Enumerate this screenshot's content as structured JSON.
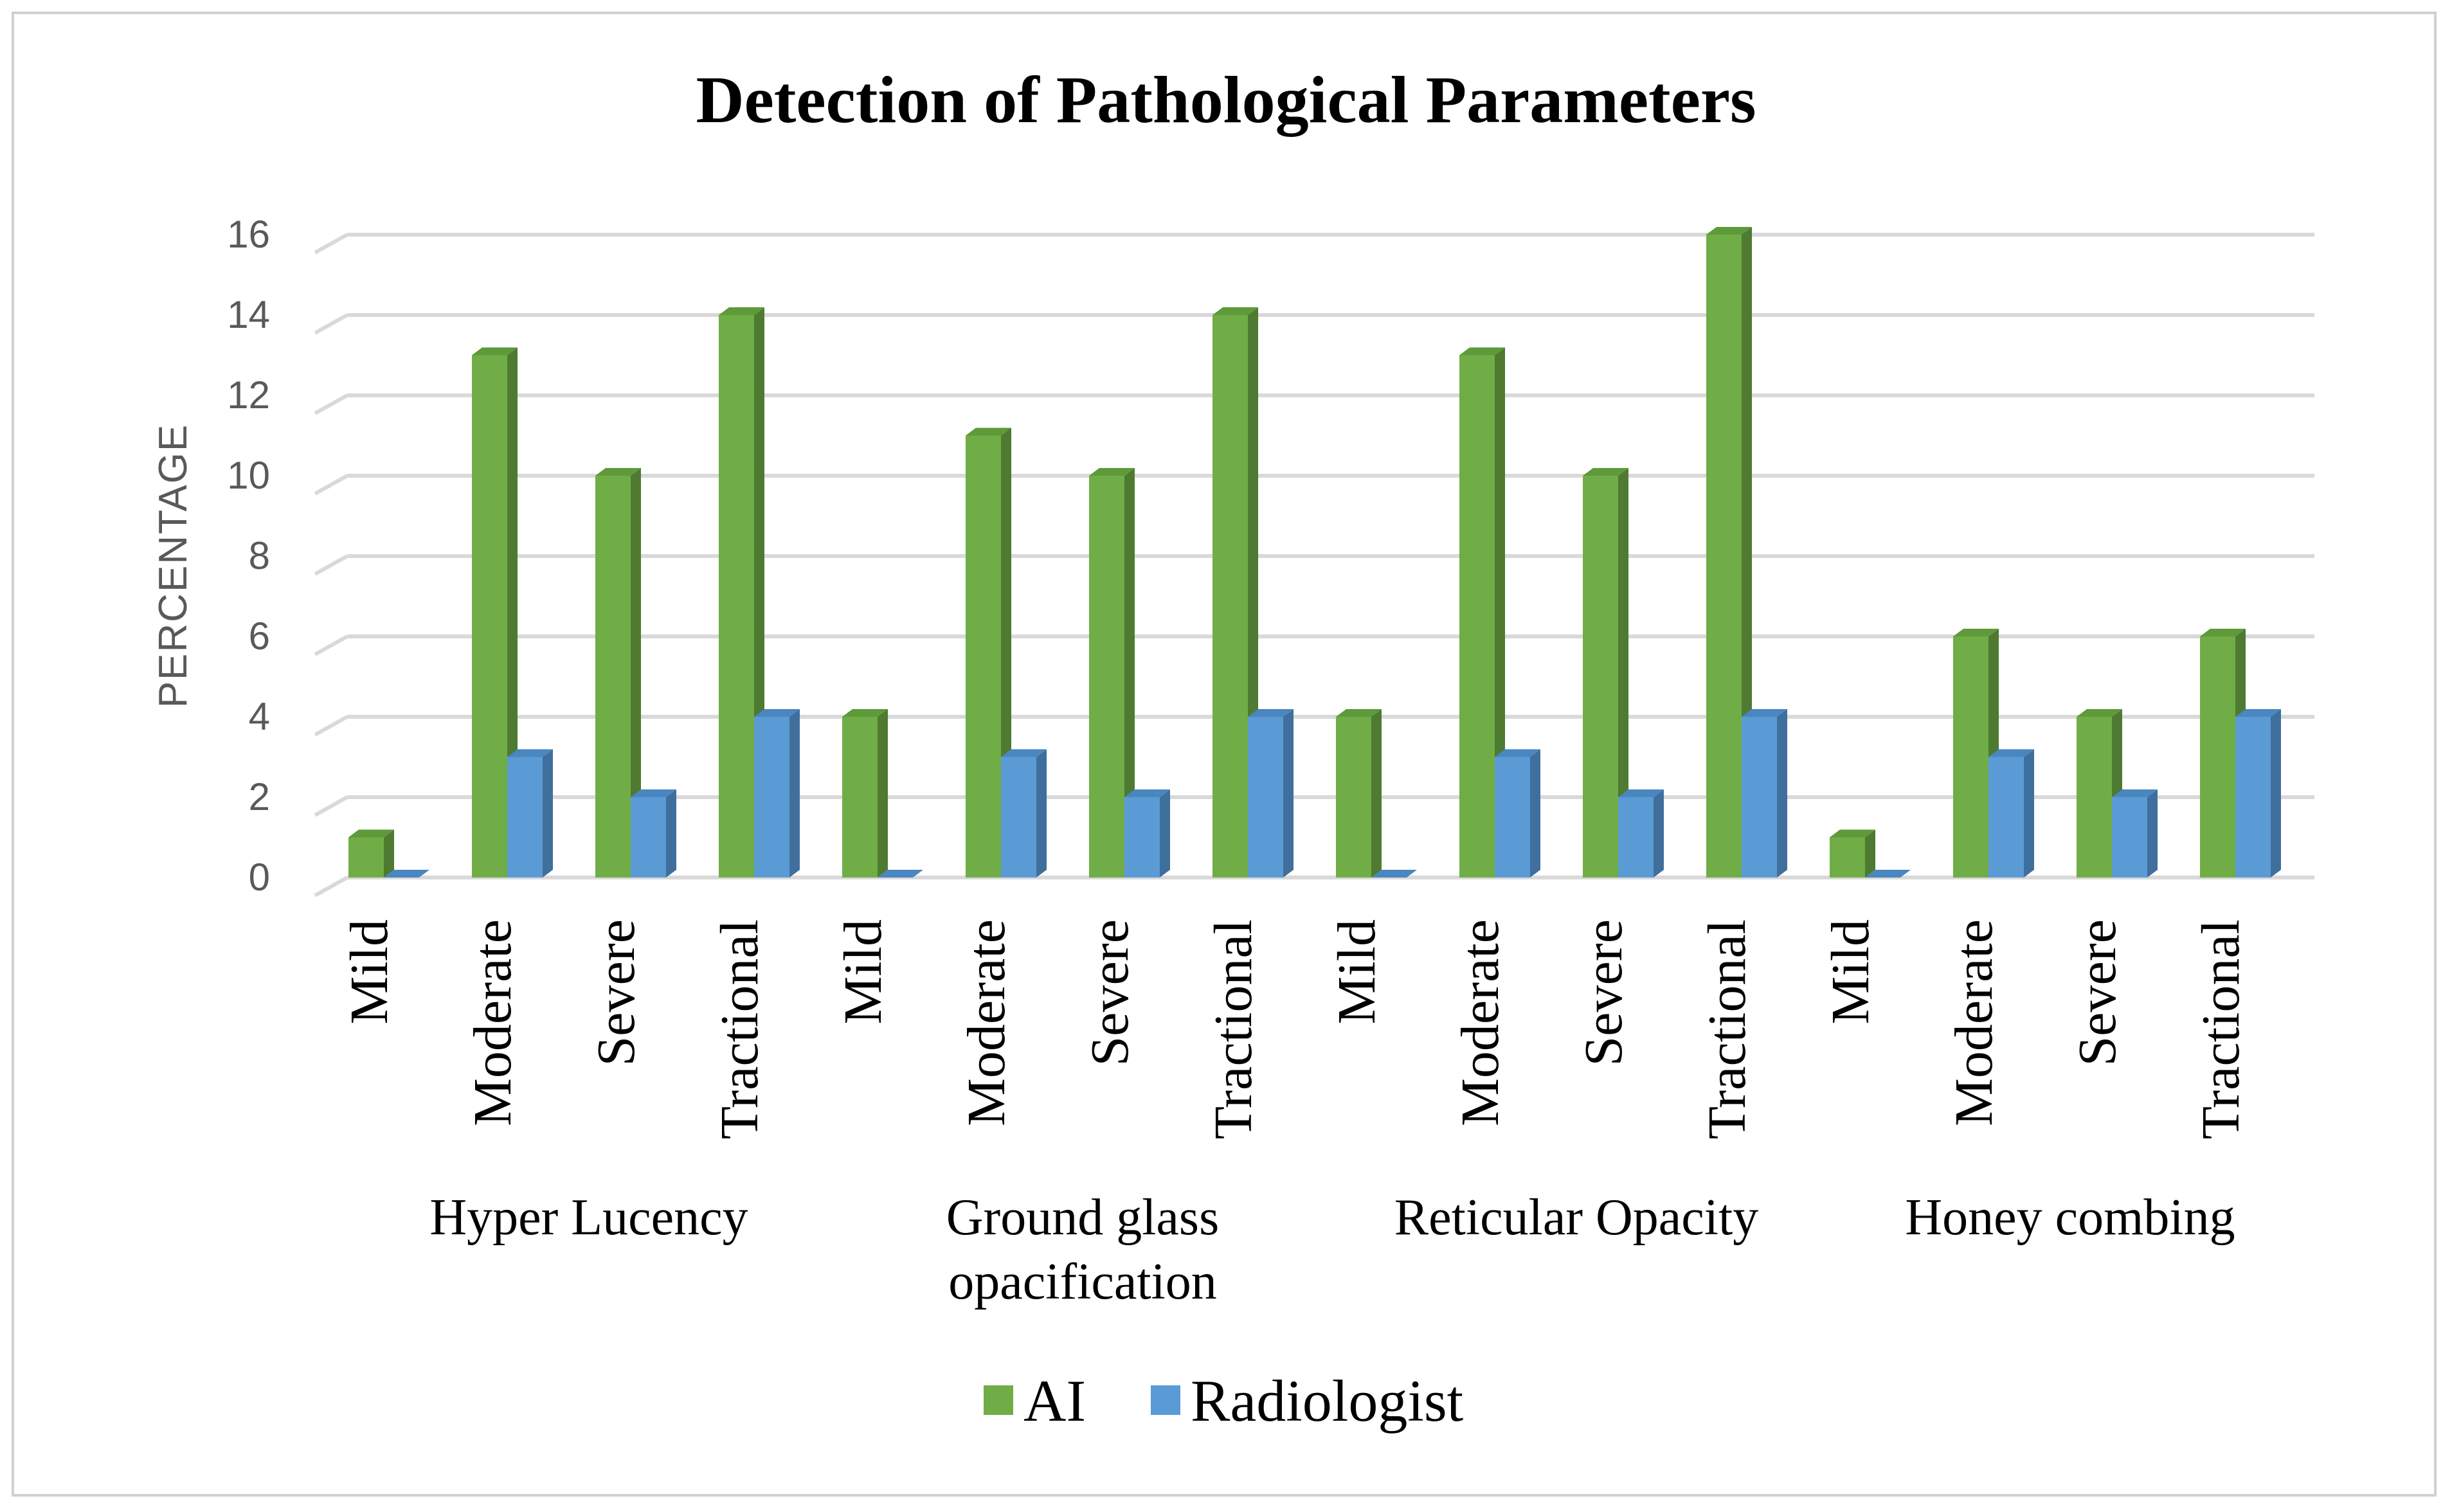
{
  "chart_data": {
    "type": "bar",
    "title": "Detection of Pathological Parameters",
    "ylabel": "PERCENTAGE",
    "xlabel": "",
    "ylim": [
      0,
      16
    ],
    "yticks": [
      0,
      2,
      4,
      6,
      8,
      10,
      12,
      14,
      16
    ],
    "grid": true,
    "legend_position": "bottom",
    "groups": [
      {
        "label_lines": [
          "Hyper Lucency"
        ],
        "categories": [
          "Mild",
          "Moderate",
          "Severe",
          "Tractional"
        ]
      },
      {
        "label_lines": [
          "Ground glass",
          "opacification"
        ],
        "categories": [
          "Mild",
          "Moderate",
          "Severe",
          "Tractional"
        ]
      },
      {
        "label_lines": [
          "Reticular Opacity"
        ],
        "categories": [
          "Mild",
          "Moderate",
          "Severe",
          "Tractional"
        ]
      },
      {
        "label_lines": [
          "Honey combing"
        ],
        "categories": [
          "Mild",
          "Moderate",
          "Severe",
          "Tractional"
        ]
      }
    ],
    "series": [
      {
        "name": "AI",
        "color": "#70ad47",
        "side_color": "#4e7a31",
        "top_color": "#5e9a3a",
        "values": [
          1,
          13,
          10,
          14,
          4,
          11,
          10,
          14,
          4,
          13,
          10,
          16,
          1,
          6,
          4,
          6
        ]
      },
      {
        "name": "Radiologist",
        "color": "#5b9bd5",
        "side_color": "#3f6f9c",
        "top_color": "#4a86c0",
        "values": [
          0,
          3,
          2,
          4,
          0,
          3,
          2,
          4,
          0,
          3,
          2,
          4,
          0,
          3,
          2,
          4
        ]
      }
    ]
  }
}
